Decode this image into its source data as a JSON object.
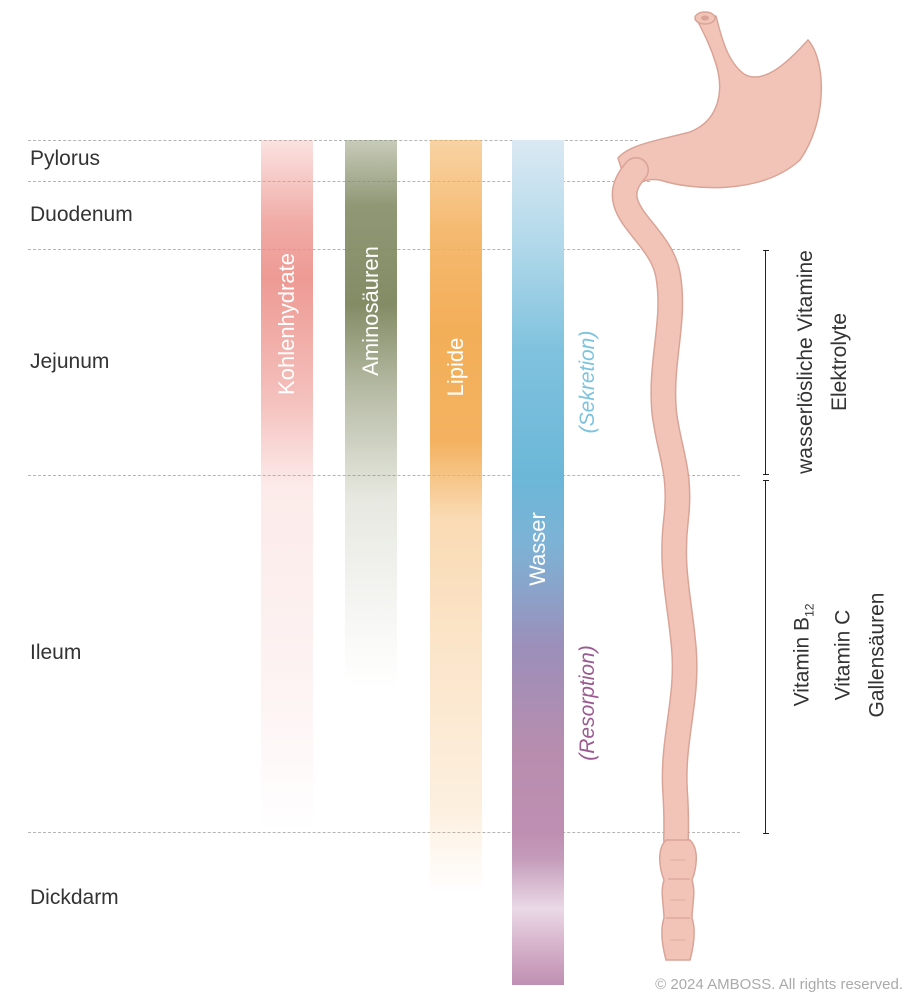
{
  "segments": {
    "pylorus": "Pylorus",
    "duodenum": "Duodenum",
    "jejunum": "Jejunum",
    "ileum": "Ileum",
    "dickdarm": "Dickdarm"
  },
  "bands": {
    "kohlenhydrate": "Kohlenhydrate",
    "aminosaeuren": "Aminosäuren",
    "lipide": "Lipide",
    "wasser": "Wasser"
  },
  "processes": {
    "sekretion": "(Sekretion)",
    "resorption": "(Resorption)"
  },
  "side_labels": {
    "upper_line1": "wasserlösliche Vitamine",
    "upper_line2": "Elektrolyte",
    "lower_line1_main": "Vitamin B",
    "lower_line1_sub": "12",
    "lower_line2": "Vitamin C",
    "lower_line3": "Gallensäuren"
  },
  "copyright": "© 2024 AMBOSS. All rights reserved.",
  "colors": {
    "kohlenhydrate": "#ec8f88",
    "aminosaeuren": "#848c66",
    "lipide": "#f3ae58",
    "wasser_top": "#cfe3ef",
    "wasser_mid": "#77bfdc",
    "wasser_low": "#9d8bb5",
    "wasser_bottom": "#b98aaa",
    "sekretion": "#7cc3dd",
    "resorption": "#9b5a92",
    "intestine_fill": "#f2c4b8",
    "intestine_stroke": "#d9a497"
  }
}
